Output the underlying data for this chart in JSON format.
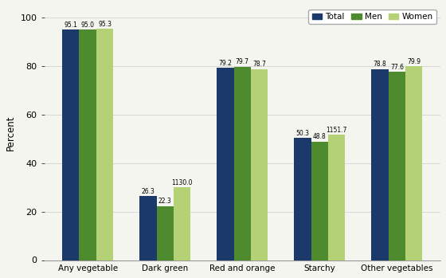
{
  "categories": [
    "Any vegetable",
    "Dark green",
    "Red and orange",
    "Starchy",
    "Other vegetables"
  ],
  "series": {
    "Total": [
      95.1,
      26.3,
      79.2,
      50.3,
      78.8
    ],
    "Men": [
      95.0,
      22.3,
      79.7,
      48.8,
      77.6
    ],
    "Women": [
      95.3,
      30.0,
      78.7,
      51.7,
      79.9
    ]
  },
  "labels": {
    "Total": [
      "95.1",
      "26.3",
      "79.2",
      "50.3",
      "78.8"
    ],
    "Men": [
      "95.0",
      "22.3",
      "79.7",
      "48.8",
      "77.6"
    ],
    "Women": [
      "95.3",
      "130.0",
      "78.7",
      "151.7",
      "79.9"
    ]
  },
  "label_prefix": {
    "Total": [
      "",
      "",
      "",
      "",
      ""
    ],
    "Men": [
      "",
      "",
      "",
      "",
      ""
    ],
    "Women": [
      "",
      "1",
      "",
      "1",
      ""
    ]
  },
  "colors": {
    "Total": "#1b3a6b",
    "Men": "#4e8a2e",
    "Women": "#b5d175"
  },
  "ylabel": "Percent",
  "ylim": [
    0,
    105
  ],
  "yticks": [
    0,
    20,
    40,
    60,
    80,
    100
  ],
  "legend_order": [
    "Total",
    "Men",
    "Women"
  ],
  "bar_width": 0.22,
  "bg_color": "#f5f5f0"
}
